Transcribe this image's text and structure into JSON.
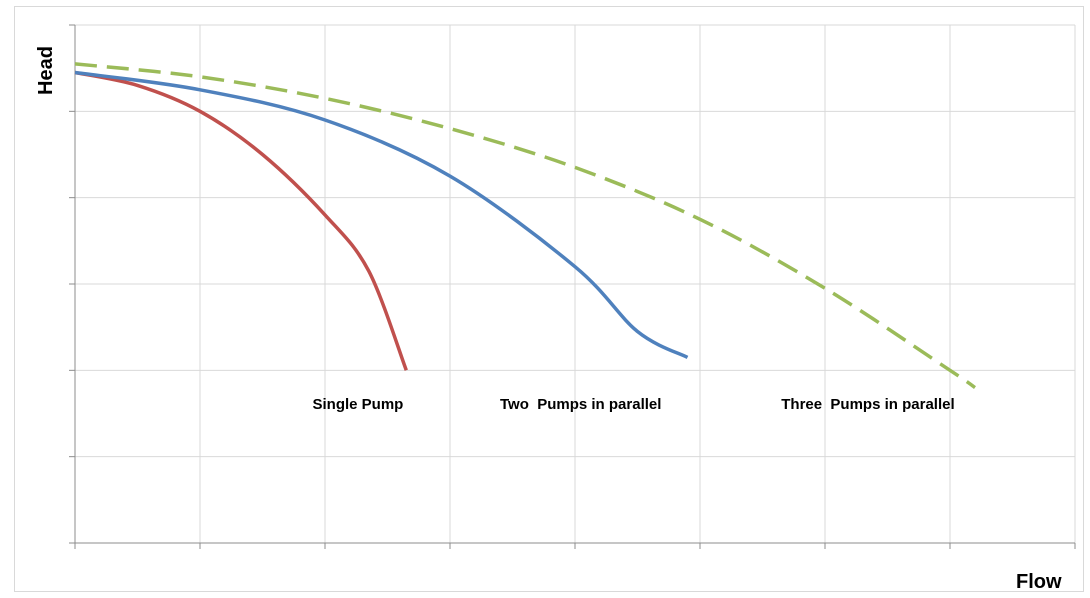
{
  "chart_data": {
    "type": "line",
    "xlabel": "Flow",
    "ylabel": "Head",
    "xlim": [
      0,
      8
    ],
    "ylim": [
      0,
      6
    ],
    "grid": true,
    "x_tick_count": 8,
    "y_tick_count": 6,
    "series": [
      {
        "name": "Single Pump",
        "color": "#c0504d",
        "dash": false,
        "points": [
          [
            0,
            5.45
          ],
          [
            0.5,
            5.3
          ],
          [
            1,
            5.0
          ],
          [
            1.5,
            4.5
          ],
          [
            2,
            3.8
          ],
          [
            2.35,
            3.15
          ],
          [
            2.65,
            2.0
          ]
        ]
      },
      {
        "name": "Two  Pumps in parallel",
        "color": "#4f81bd",
        "dash": false,
        "points": [
          [
            0,
            5.45
          ],
          [
            1,
            5.25
          ],
          [
            2,
            4.9
          ],
          [
            3,
            4.25
          ],
          [
            4,
            3.2
          ],
          [
            4.5,
            2.45
          ],
          [
            4.9,
            2.15
          ]
        ]
      },
      {
        "name": "Three  Pumps in parallel",
        "color": "#9bbb59",
        "dash": true,
        "points": [
          [
            0,
            5.55
          ],
          [
            1,
            5.4
          ],
          [
            2,
            5.15
          ],
          [
            3,
            4.8
          ],
          [
            4,
            4.35
          ],
          [
            5,
            3.75
          ],
          [
            6,
            2.95
          ],
          [
            7,
            2.0
          ],
          [
            7.2,
            1.8
          ]
        ]
      }
    ],
    "annotations": [
      {
        "text": "Single Pump",
        "x": 1.9,
        "y": 1.55
      },
      {
        "text": "Two  Pumps in parallel",
        "x": 3.4,
        "y": 1.55
      },
      {
        "text": "Three  Pumps in parallel",
        "x": 5.65,
        "y": 1.55
      }
    ]
  }
}
